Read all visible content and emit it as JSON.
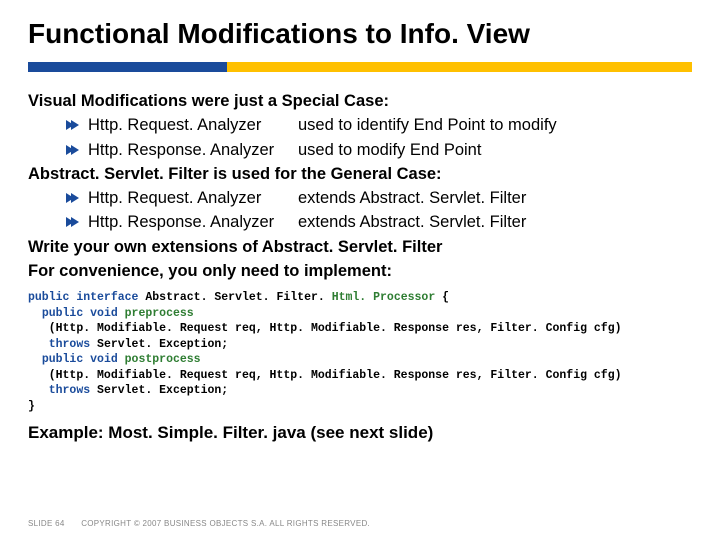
{
  "title": "Functional Modifications to Info. View",
  "dividerColors": {
    "left": "#1a4b9b",
    "right": "#ffc000",
    "split": 30
  },
  "lines": {
    "l1": "Visual Modifications were just a Special Case:",
    "l2a": "Http. Request. Analyzer",
    "l2b": "used to identify End Point to modify",
    "l3a": "Http. Response. Analyzer",
    "l3b": "used to modify End Point",
    "l4": "Abstract. Servlet. Filter is used for the General Case:",
    "l5a": "Http. Request. Analyzer",
    "l5b": "extends Abstract. Servlet. Filter",
    "l6a": "Http. Response. Analyzer",
    "l6b": "extends Abstract. Servlet. Filter",
    "l7": "Write your own extensions of Abstract. Servlet. Filter",
    "l8": "For convenience, you only need to implement:",
    "example": "Example: Most. Simple. Filter. java (see next slide)"
  },
  "code": {
    "kw": {
      "public": "public",
      "interface": "interface",
      "void": "void",
      "throws": "throws"
    },
    "cls": "Abstract. Servlet. Filter. ",
    "inner": "Html. Processor",
    "m1": "preprocess",
    "m2": "postprocess",
    "sig": "(Http. Modifiable. Request req, Http. Modifiable. Response res, Filter. Config cfg)",
    "exc": "Servlet. Exception;"
  },
  "footer": {
    "slide": "SLIDE 64",
    "copyright": "COPYRIGHT © 2007 BUSINESS OBJECTS S.A. ALL RIGHTS RESERVED."
  }
}
